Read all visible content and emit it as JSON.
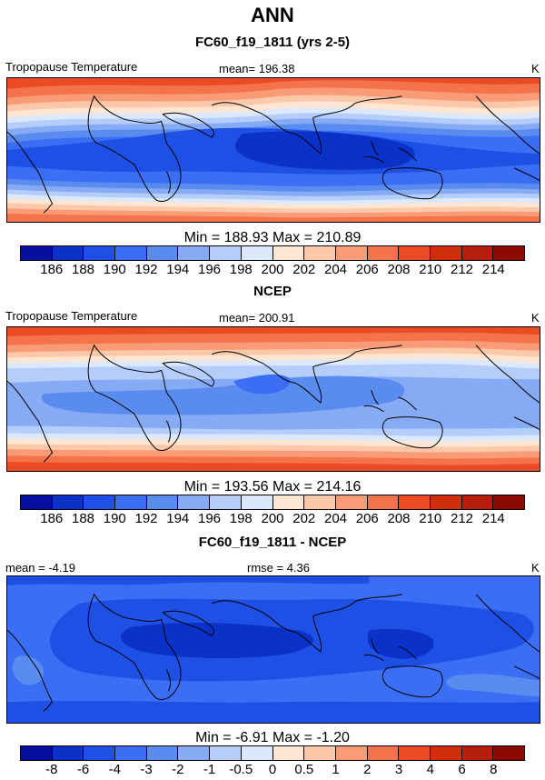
{
  "page_title": "ANN",
  "units": "K",
  "colors": {
    "blue_scale": [
      "#050fa0",
      "#0a32c8",
      "#1e50e6",
      "#3c6ef5",
      "#5a8cf0",
      "#87aaf5",
      "#b4cdfa",
      "#dce8fc"
    ],
    "red_scale": [
      "#fee6d2",
      "#fcc8aa",
      "#fa9b78",
      "#f5734b",
      "#eb4b23",
      "#d22d0a",
      "#b41e0a",
      "#8c0a00"
    ],
    "map_land_outline": "#000000"
  },
  "panels": [
    {
      "title": "FC60_f19_1811 (yrs 2-5)",
      "field_label": "Tropopause Temperature",
      "mean_text": "mean=  196.38",
      "units": "K",
      "minmax_text": "Min  =  188.93  Max  =  210.89",
      "tick_labels": [
        "186",
        "188",
        "190",
        "192",
        "194",
        "196",
        "198",
        "200",
        "202",
        "204",
        "206",
        "208",
        "210",
        "212",
        "214"
      ],
      "map_field": {
        "min": 188.93,
        "max": 210.89,
        "mean": 196.38
      }
    },
    {
      "title": "NCEP",
      "field_label": "Tropopause Temperature",
      "mean_text": "mean=  200.91",
      "units": "K",
      "minmax_text": "Min  =  193.56  Max  =  214.16",
      "tick_labels": [
        "186",
        "188",
        "190",
        "192",
        "194",
        "196",
        "198",
        "200",
        "202",
        "204",
        "206",
        "208",
        "210",
        "212",
        "214"
      ],
      "map_field": {
        "min": 193.56,
        "max": 214.16,
        "mean": 200.91
      }
    },
    {
      "title": "FC60_f19_1811 - NCEP",
      "field_label": "",
      "mean_text": "mean =   -4.19",
      "rmse_text": "rmse =    4.36",
      "units": "K",
      "minmax_text": "Min  =   -6.91  Max  =   -1.20",
      "tick_labels": [
        "-8",
        "-6",
        "-4",
        "-3",
        "-2",
        "-1",
        "-0.5",
        "0",
        "0.5",
        "1",
        "2",
        "3",
        "4",
        "6",
        "8"
      ],
      "map_field": {
        "min": -6.91,
        "max": -1.2,
        "mean": -4.19,
        "rmse": 4.36
      }
    }
  ]
}
